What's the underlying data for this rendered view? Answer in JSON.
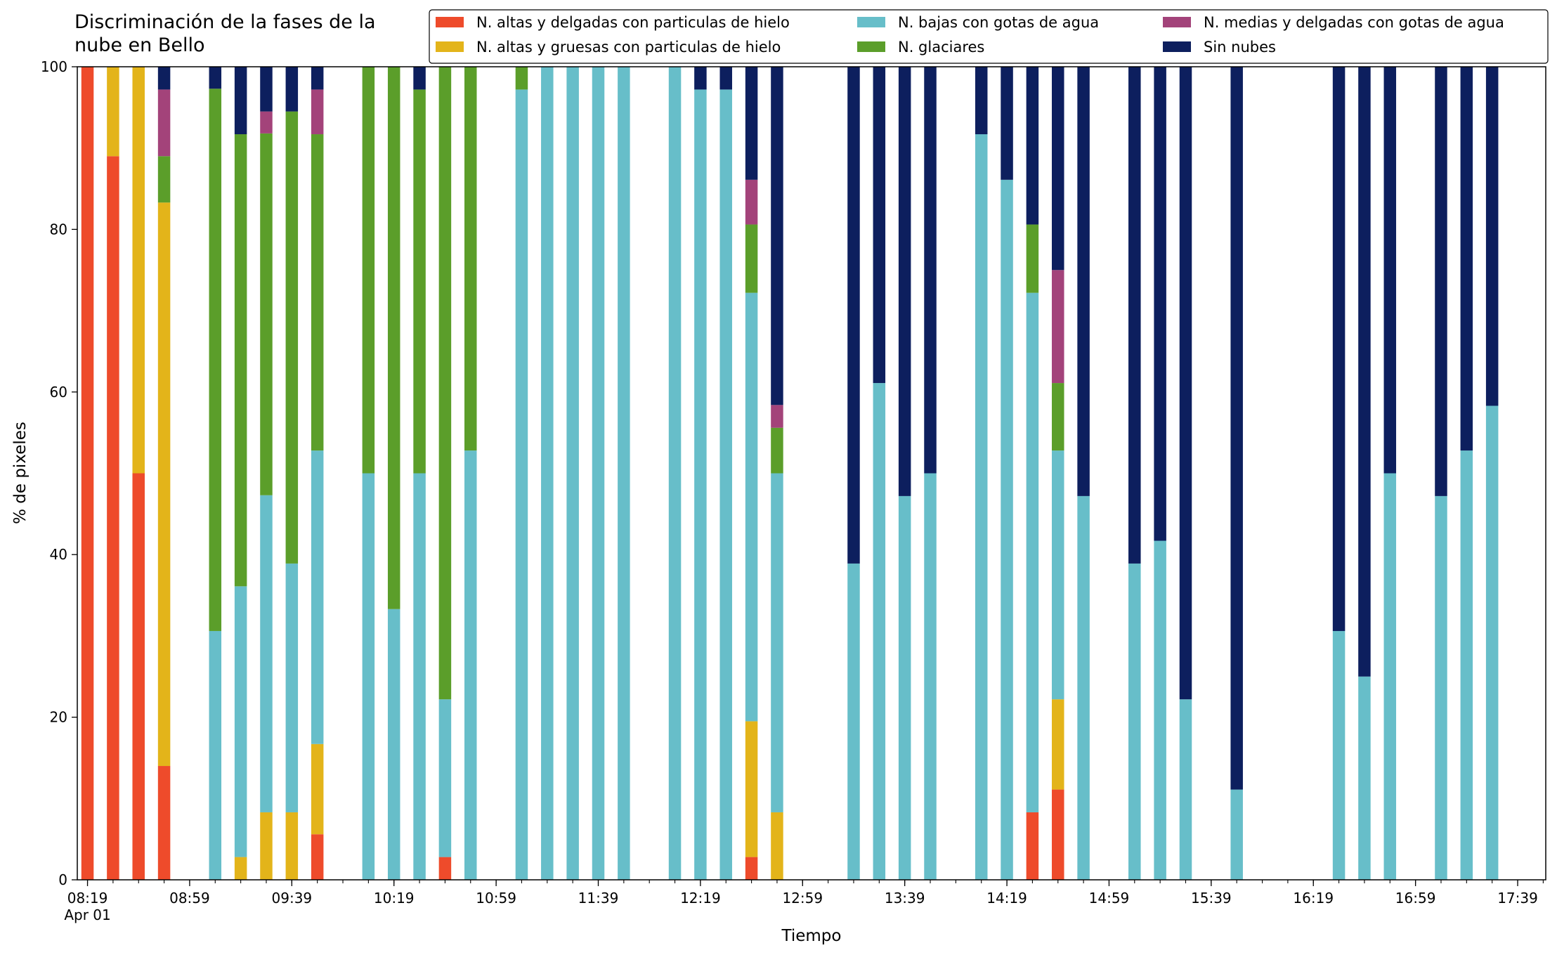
{
  "chart_data": {
    "type": "bar",
    "stacked": true,
    "title": "Discriminación de la fases de la\nnube en Bello",
    "xlabel": "Tiempo",
    "ylabel": "% de pixeles",
    "ylim": [
      0,
      100
    ],
    "yticks": [
      0,
      20,
      40,
      60,
      80,
      100
    ],
    "xrange": [
      "08:15",
      "17:50"
    ],
    "xticks_major": [
      "08:19",
      "08:59",
      "09:39",
      "10:19",
      "10:59",
      "11:39",
      "12:19",
      "12:59",
      "13:39",
      "14:19",
      "14:59",
      "15:39",
      "16:19",
      "16:59",
      "17:39"
    ],
    "xticks_minor_minutes": 10,
    "date_label": "Apr 01",
    "grid": false,
    "legend_position": "top-right",
    "series": [
      {
        "name": "N. altas y delgadas con particulas de hielo",
        "color": "#EE4B2B"
      },
      {
        "name": "N. altas y gruesas con particulas de hielo",
        "color": "#E3B41A"
      },
      {
        "name": "N. bajas con gotas de agua",
        "color": "#67BEC9"
      },
      {
        "name": "N. glaciares",
        "color": "#5B9E2A"
      },
      {
        "name": "N. medias y delgadas con gotas de agua",
        "color": "#A3437A"
      },
      {
        "name": "Sin nubes",
        "color": "#0D1F5E"
      }
    ],
    "bars": [
      {
        "time": "08:19",
        "values": [
          100,
          0,
          0,
          0,
          0,
          0
        ]
      },
      {
        "time": "08:29",
        "values": [
          89,
          11,
          0,
          0,
          0,
          0
        ]
      },
      {
        "time": "08:39",
        "values": [
          50,
          50,
          0,
          0,
          0,
          0
        ]
      },
      {
        "time": "08:49",
        "values": [
          14,
          69.3,
          0,
          5.7,
          8.2,
          2.8
        ]
      },
      {
        "time": "09:09",
        "values": [
          0,
          0,
          30.6,
          66.7,
          0,
          2.7
        ]
      },
      {
        "time": "09:19",
        "values": [
          0,
          2.8,
          33.3,
          55.6,
          0,
          8.3
        ]
      },
      {
        "time": "09:29",
        "values": [
          0,
          8.3,
          39,
          44.5,
          2.7,
          5.5
        ]
      },
      {
        "time": "09:39",
        "values": [
          0,
          8.3,
          30.6,
          55.6,
          0,
          5.5
        ]
      },
      {
        "time": "09:49",
        "values": [
          5.6,
          11.1,
          36.1,
          38.9,
          5.5,
          2.8
        ]
      },
      {
        "time": "10:09",
        "values": [
          0,
          0,
          50,
          50,
          0,
          0
        ]
      },
      {
        "time": "10:19",
        "values": [
          0,
          0,
          33.3,
          66.7,
          0,
          0
        ]
      },
      {
        "time": "10:29",
        "values": [
          0,
          0,
          50,
          47.2,
          0,
          2.8
        ]
      },
      {
        "time": "10:39",
        "values": [
          2.8,
          0,
          19.4,
          77.8,
          0,
          0
        ]
      },
      {
        "time": "10:49",
        "values": [
          0,
          0,
          52.8,
          47.2,
          0,
          0
        ]
      },
      {
        "time": "11:09",
        "values": [
          0,
          0,
          97.2,
          2.8,
          0,
          0
        ]
      },
      {
        "time": "11:19",
        "values": [
          0,
          0,
          100,
          0,
          0,
          0
        ]
      },
      {
        "time": "11:29",
        "values": [
          0,
          0,
          100,
          0,
          0,
          0
        ]
      },
      {
        "time": "11:39",
        "values": [
          0,
          0,
          100,
          0,
          0,
          0
        ]
      },
      {
        "time": "11:49",
        "values": [
          0,
          0,
          100,
          0,
          0,
          0
        ]
      },
      {
        "time": "12:09",
        "values": [
          0,
          0,
          100,
          0,
          0,
          0
        ]
      },
      {
        "time": "12:19",
        "values": [
          0,
          0,
          97.2,
          0,
          0,
          2.8
        ]
      },
      {
        "time": "12:29",
        "values": [
          0,
          0,
          97.2,
          0,
          0,
          2.8
        ]
      },
      {
        "time": "12:39",
        "values": [
          2.8,
          16.7,
          52.7,
          8.4,
          5.5,
          13.9
        ]
      },
      {
        "time": "12:49",
        "values": [
          0,
          8.3,
          41.7,
          5.6,
          2.8,
          41.6
        ]
      },
      {
        "time": "13:19",
        "values": [
          0,
          0,
          38.9,
          0,
          0,
          61.1
        ]
      },
      {
        "time": "13:29",
        "values": [
          0,
          0,
          61.1,
          0,
          0,
          38.9
        ]
      },
      {
        "time": "13:39",
        "values": [
          0,
          0,
          47.2,
          0,
          0,
          52.8
        ]
      },
      {
        "time": "13:49",
        "values": [
          0,
          0,
          50,
          0,
          0,
          50
        ]
      },
      {
        "time": "14:09",
        "values": [
          0,
          0,
          91.7,
          0,
          0,
          8.3
        ]
      },
      {
        "time": "14:19",
        "values": [
          0,
          0,
          86.1,
          0,
          0,
          13.9
        ]
      },
      {
        "time": "14:29",
        "values": [
          8.3,
          0,
          63.9,
          8.4,
          0,
          19.4
        ]
      },
      {
        "time": "14:39",
        "values": [
          11.1,
          11.1,
          30.6,
          8.3,
          13.9,
          25
        ]
      },
      {
        "time": "14:49",
        "values": [
          0,
          0,
          47.2,
          0,
          0,
          52.8
        ]
      },
      {
        "time": "15:09",
        "values": [
          0,
          0,
          38.9,
          0,
          0,
          61.1
        ]
      },
      {
        "time": "15:19",
        "values": [
          0,
          0,
          41.7,
          0,
          0,
          58.3
        ]
      },
      {
        "time": "15:29",
        "values": [
          0,
          0,
          22.2,
          0,
          0,
          77.8
        ]
      },
      {
        "time": "15:49",
        "values": [
          0,
          0,
          11.1,
          0,
          0,
          88.9
        ]
      },
      {
        "time": "16:29",
        "values": [
          0,
          0,
          30.6,
          0,
          0,
          69.4
        ]
      },
      {
        "time": "16:39",
        "values": [
          0,
          0,
          25,
          0,
          0,
          75
        ]
      },
      {
        "time": "16:49",
        "values": [
          0,
          0,
          50,
          0,
          0,
          50
        ]
      },
      {
        "time": "17:09",
        "values": [
          0,
          0,
          47.2,
          0,
          0,
          52.8
        ]
      },
      {
        "time": "17:19",
        "values": [
          0,
          0,
          52.8,
          0,
          0,
          47.2
        ]
      },
      {
        "time": "17:29",
        "values": [
          0,
          0,
          58.3,
          0,
          0,
          41.7
        ]
      }
    ]
  }
}
